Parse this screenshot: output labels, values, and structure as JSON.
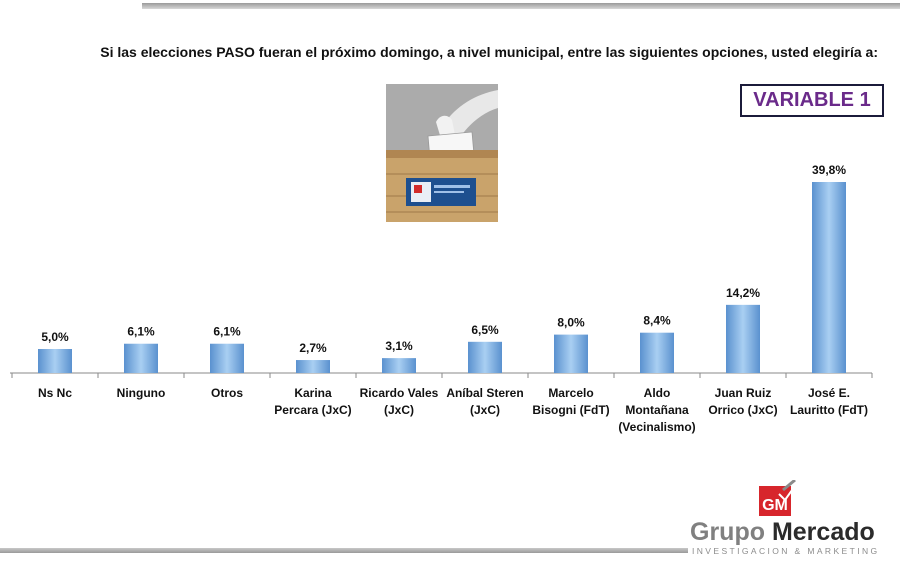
{
  "question": "Si las elecciones PASO fueran el próximo domingo, a nivel municipal, entre las siguientes opciones, usted elegiría a:",
  "variable_label": "VARIABLE 1",
  "logo": {
    "name_part1": "Grupo",
    "name_part2": "Mercado",
    "tagline": "INVESTIGACION & MARKETING",
    "mark_text": "GM"
  },
  "colors": {
    "bar": "#7fb4e6",
    "bar_dark": "#4f86c6",
    "title_accent": "#6a2a8a",
    "logo_red": "#d7262c"
  },
  "chart_data": {
    "type": "bar",
    "title": "",
    "xlabel": "",
    "ylabel": "",
    "ylim": [
      0,
      42
    ],
    "grid": false,
    "categories": [
      [
        "Ns Nc"
      ],
      [
        "Ninguno"
      ],
      [
        "Otros"
      ],
      [
        "Karina",
        "Percara (JxC)"
      ],
      [
        "Ricardo Vales",
        "(JxC)"
      ],
      [
        "Aníbal Steren",
        "(JxC)"
      ],
      [
        "Marcelo",
        "Bisogni (FdT)"
      ],
      [
        "Aldo",
        "Montañana",
        "(Vecinalismo)"
      ],
      [
        "Juan Ruiz",
        "Orrico (JxC)"
      ],
      [
        "José E.",
        "Lauritto (FdT)"
      ]
    ],
    "values": [
      5.0,
      6.1,
      6.1,
      2.7,
      3.1,
      6.5,
      8.0,
      8.4,
      14.2,
      39.8
    ],
    "value_labels": [
      "5,0%",
      "6,1%",
      "6,1%",
      "2,7%",
      "3,1%",
      "6,5%",
      "8,0%",
      "8,4%",
      "14,2%",
      "39,8%"
    ]
  }
}
